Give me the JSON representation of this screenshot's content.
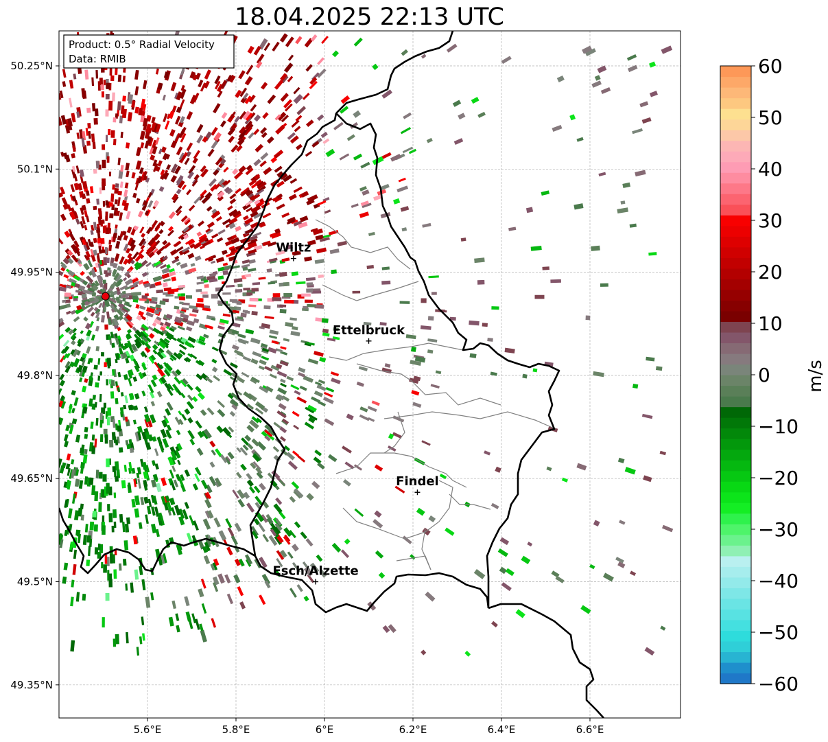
{
  "title": "18.04.2025 22:13 UTC",
  "info_box": {
    "product": "Product: 0.5° Radial Velocity",
    "data": "Data: RMIB"
  },
  "axes": {
    "lat_ticks": [
      "50.25°N",
      "50.1°N",
      "49.95°N",
      "49.8°N",
      "49.65°N",
      "49.5°N",
      "49.35°N"
    ],
    "lon_ticks": [
      "5.6°E",
      "5.8°E",
      "6°E",
      "6.2°E",
      "6.4°E",
      "6.6°E"
    ]
  },
  "cities": [
    {
      "name": "Wiltz",
      "lon": 5.93,
      "lat": 49.97
    },
    {
      "name": "Ettelbruck",
      "lon": 6.1,
      "lat": 49.85
    },
    {
      "name": "Findel",
      "lon": 6.21,
      "lat": 49.63
    },
    {
      "name": "Esch/Alzette",
      "lon": 5.98,
      "lat": 49.5
    }
  ],
  "radar_site": {
    "lon": 5.505,
    "lat": 49.915,
    "color": "#e8000a"
  },
  "colorbar": {
    "label": "m/s",
    "min": -60,
    "max": 60,
    "tick_labels": [
      "60",
      "50",
      "40",
      "30",
      "20",
      "10",
      "0",
      "−10",
      "−20",
      "−30",
      "−40",
      "−50",
      "−60"
    ],
    "colors": [
      "#1f78c8",
      "#1f8fcc",
      "#28b4d2",
      "#2fcfd8",
      "#2edcdc",
      "#44e0e0",
      "#58e2e2",
      "#6ae4e4",
      "#7ee7e7",
      "#93eaea",
      "#a6eded",
      "#b9f0f0",
      "#8ff0b4",
      "#6bf28d",
      "#4ef46a",
      "#2ef24c",
      "#14ee24",
      "#0ce41a",
      "#08d814",
      "#06c812",
      "#05b810",
      "#04a80e",
      "#03980c",
      "#02880a",
      "#017808",
      "#006806",
      "#4a7a4c",
      "#5a7f58",
      "#6b8468",
      "#7a857a",
      "#867a7e",
      "#866a74",
      "#83566a",
      "#7e4450",
      "#7a0000",
      "#870000",
      "#960000",
      "#a40000",
      "#b30000",
      "#c20000",
      "#d00000",
      "#de0000",
      "#ec0000",
      "#f80000",
      "#fa5058",
      "#fc6470",
      "#fd7888",
      "#fe8ca0",
      "#fe9cb4",
      "#fdaab8",
      "#fcb6b4",
      "#fcc8a8",
      "#fdd698",
      "#fde090",
      "#fdc880",
      "#fdb878",
      "#fda868",
      "#fd9858"
    ]
  }
}
